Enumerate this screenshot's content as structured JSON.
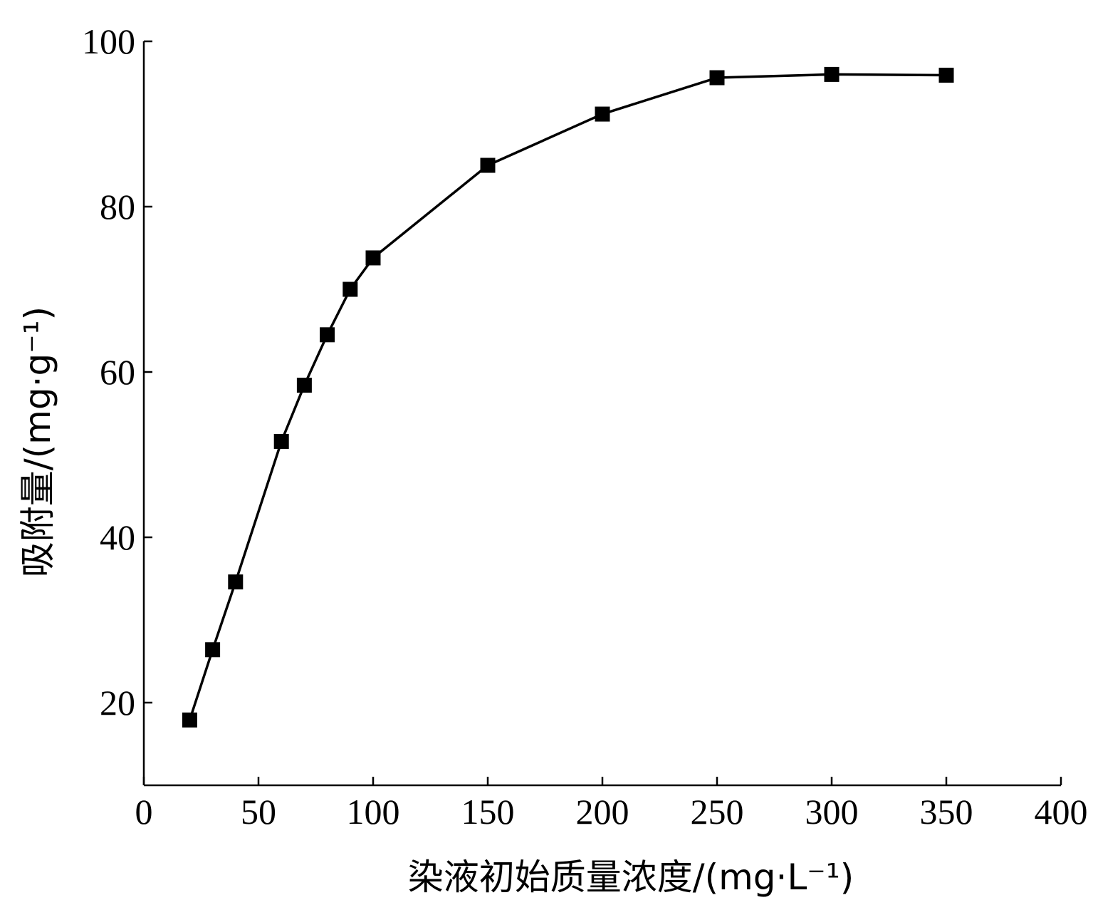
{
  "chart_data": {
    "type": "line",
    "xlabel": "染液初始质量浓度/(mg·L⁻¹)",
    "ylabel": "吸附量/(mg·g⁻¹)",
    "xlim": [
      0,
      400
    ],
    "ylim": [
      10,
      100
    ],
    "xticks": [
      0,
      50,
      100,
      150,
      200,
      250,
      300,
      350,
      400
    ],
    "yticks": [
      20,
      40,
      60,
      80,
      100
    ],
    "grid": false,
    "marker": "square",
    "series": [
      {
        "x": [
          20,
          30,
          40,
          60,
          70,
          80,
          90,
          100,
          150,
          200,
          250,
          300,
          350
        ],
        "y": [
          17.9,
          26.4,
          34.6,
          51.6,
          58.4,
          64.5,
          70.0,
          73.8,
          85.0,
          91.2,
          95.6,
          96.0,
          95.9
        ]
      }
    ]
  }
}
